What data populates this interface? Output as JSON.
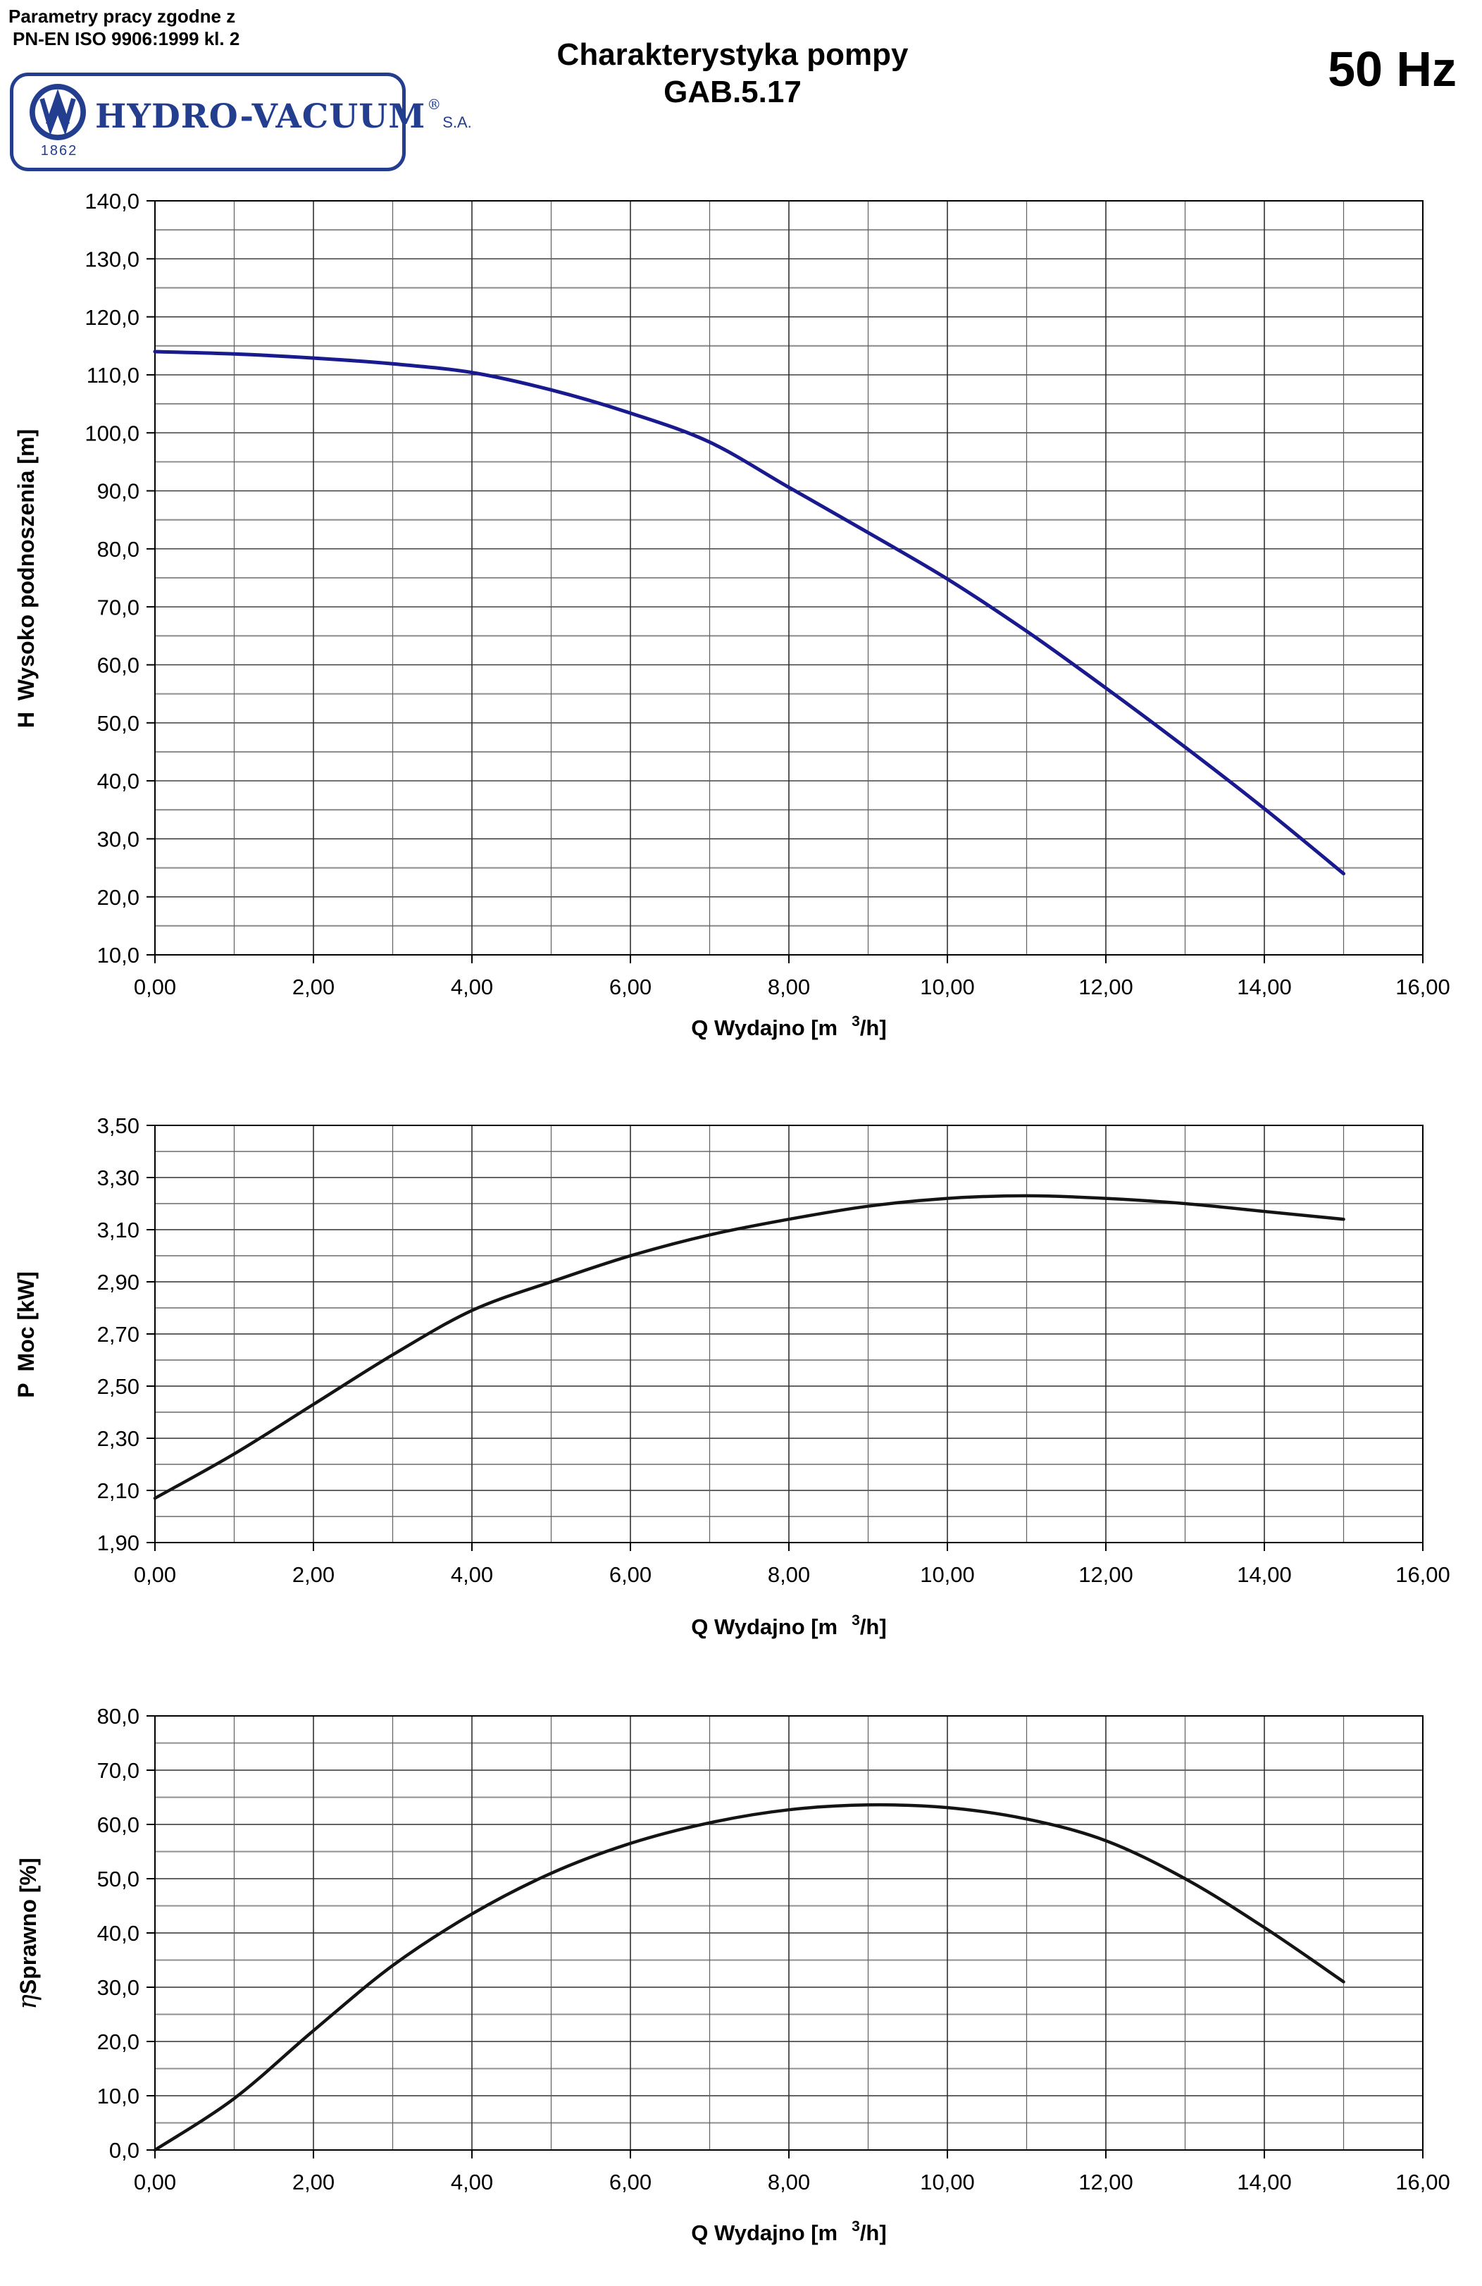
{
  "header": {
    "compliance_line1": "Parametry pracy zgodne z",
    "compliance_line2": "PN-EN ISO 9906:1999 kl. 2",
    "title_line1": "Charakterystyka pompy",
    "title_line2": "GAB.5.17",
    "frequency": "50 Hz",
    "logo": {
      "name": "HYDRO-VACUUM",
      "reg": "®",
      "suffix": "S.A.",
      "year": "1862",
      "color": "#233e8f"
    }
  },
  "axis": {
    "x_title_pre": "Q Wydajno [m",
    "x_title_sup": "3",
    "x_title_post": "/h]"
  },
  "colors": {
    "head_curve": "#1a1a8f",
    "power_curve": "#141414",
    "efficiency_curve": "#141414",
    "grid_minor": "#8f8f8f",
    "grid_major": "#303030",
    "frame": "#000000",
    "logo_navy": "#233e8f"
  },
  "chart_data": [
    {
      "type": "line",
      "name": "head-curve",
      "ylabel_prefix": "H",
      "ylabel_main": "Wysoko podnoszenia [m]",
      "ylim": [
        10,
        140
      ],
      "y_major": 10,
      "y_minor": 5,
      "xlim": [
        0,
        16
      ],
      "x_major": 2,
      "x_minor": 1,
      "grid": true,
      "legend": "none",
      "ytick_labels": [
        "140,0",
        "130,0",
        "120,0",
        "110,0",
        "100,0",
        "90,0",
        "80,0",
        "70,0",
        "60,0",
        "50,0",
        "40,0",
        "30,0",
        "20,0",
        "10,0"
      ],
      "xtick_labels": [
        "0,00",
        "2,00",
        "4,00",
        "6,00",
        "8,00",
        "10,00",
        "12,00",
        "14,00",
        "16,00"
      ],
      "x": [
        0,
        1,
        2,
        3,
        4,
        5,
        6,
        7,
        8,
        9,
        10,
        11,
        12,
        13,
        14,
        15
      ],
      "values": [
        114.0,
        113.6,
        112.9,
        111.9,
        110.4,
        107.4,
        103.4,
        98.4,
        90.6,
        82.8,
        74.8,
        65.8,
        56.0,
        45.8,
        35.2,
        24.0
      ],
      "line_color": "#1a1a8f",
      "line_width": 5
    },
    {
      "type": "line",
      "name": "power-curve",
      "ylabel_prefix": "P",
      "ylabel_main": "Moc [kW]",
      "ylim": [
        1.9,
        3.5
      ],
      "y_major": 0.2,
      "y_minor": 0.1,
      "xlim": [
        0,
        16
      ],
      "x_major": 2,
      "x_minor": 1,
      "grid": true,
      "legend": "none",
      "ytick_labels": [
        "3,50",
        "3,30",
        "3,10",
        "2,90",
        "2,70",
        "2,50",
        "2,30",
        "2,10",
        "1,90"
      ],
      "xtick_labels": [
        "0,00",
        "2,00",
        "4,00",
        "6,00",
        "8,00",
        "10,00",
        "12,00",
        "14,00",
        "16,00"
      ],
      "x": [
        0,
        1,
        2,
        3,
        4,
        5,
        6,
        7,
        8,
        9,
        10,
        11,
        12,
        13,
        14,
        15
      ],
      "values": [
        2.07,
        2.24,
        2.43,
        2.62,
        2.79,
        2.9,
        3.0,
        3.08,
        3.14,
        3.19,
        3.22,
        3.23,
        3.22,
        3.2,
        3.17,
        3.14
      ],
      "line_color": "#141414",
      "line_width": 4.5
    },
    {
      "type": "line",
      "name": "efficiency-curve",
      "ylabel_prefix": "η",
      "ylabel_main": "Sprawno [%]",
      "ylim": [
        0,
        80
      ],
      "y_major": 10,
      "y_minor": 5,
      "xlim": [
        0,
        16
      ],
      "x_major": 2,
      "x_minor": 1,
      "grid": true,
      "legend": "none",
      "ytick_labels": [
        "80,0",
        "70,0",
        "60,0",
        "50,0",
        "40,0",
        "30,0",
        "20,0",
        "10,0",
        "0,0"
      ],
      "xtick_labels": [
        "0,00",
        "2,00",
        "4,00",
        "6,00",
        "8,00",
        "10,00",
        "12,00",
        "14,00",
        "16,00"
      ],
      "x": [
        0,
        1,
        2,
        3,
        4,
        5,
        6,
        7,
        8,
        9,
        10,
        11,
        12,
        13,
        14,
        15
      ],
      "values": [
        0.0,
        9.5,
        22.0,
        34.0,
        43.5,
        51.0,
        56.5,
        60.3,
        62.7,
        63.6,
        63.1,
        61.0,
        57.0,
        50.0,
        41.0,
        31.0
      ],
      "line_color": "#141414",
      "line_width": 4.5
    }
  ]
}
